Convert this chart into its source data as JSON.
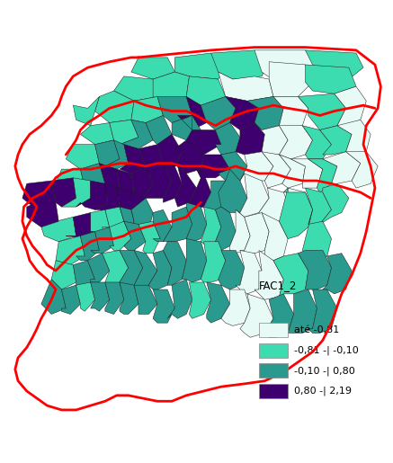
{
  "legend_title": "FAC1_2",
  "legend_items": [
    {
      "label": "até -0,81",
      "color": "#e8faf6"
    },
    {
      "label": "-0,81 -| -0,10",
      "color": "#3ddbb0"
    },
    {
      "label": "-0,10 -| 0,80",
      "color": "#2b9a8e"
    },
    {
      "label": "0,80 -| 2,19",
      "color": "#3d006e"
    }
  ],
  "background_color": "#ffffff",
  "red_color": "#ff0000",
  "mun_edge_color": "#1a1a1a",
  "figsize": [
    4.37,
    5.15
  ],
  "dpi": 100,
  "legend_fontsize": 8,
  "legend_title_fontsize": 8.5
}
